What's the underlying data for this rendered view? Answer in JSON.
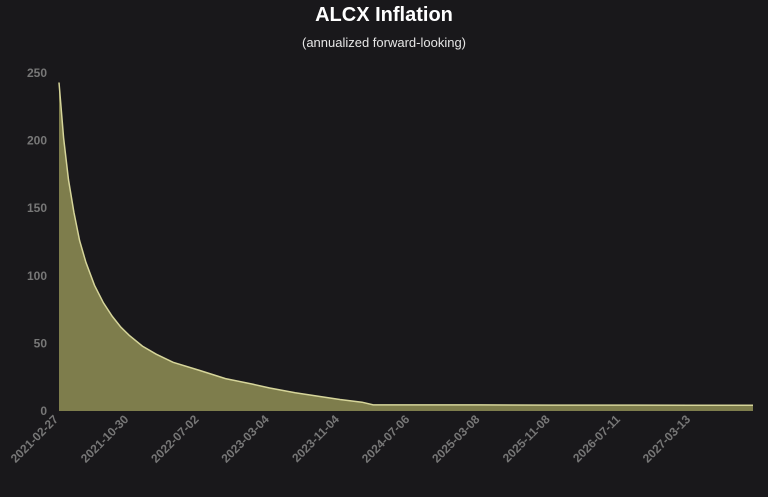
{
  "chart_data": {
    "type": "area",
    "title": "ALCX Inflation",
    "subtitle": "(annualized forward-looking)",
    "xlabel": "",
    "ylabel": "",
    "ylim": [
      0,
      250
    ],
    "yticks": [
      0,
      50,
      100,
      150,
      200,
      250
    ],
    "xticks": [
      "2021-02-27",
      "2021-10-30",
      "2022-07-02",
      "2023-03-04",
      "2023-11-04",
      "2024-07-06",
      "2025-03-08",
      "2025-11-08",
      "2026-07-11",
      "2027-03-13"
    ],
    "xlim": [
      "2021-02-27",
      "2027-10-15"
    ],
    "grid": false,
    "fill_color": "#7e7d4c",
    "line_color": "#d6d59a",
    "series": [
      {
        "x": [
          "2021-02-27",
          "2021-03-15",
          "2021-04-01",
          "2021-04-20",
          "2021-05-10",
          "2021-06-01",
          "2021-07-01",
          "2021-08-01",
          "2021-09-01",
          "2021-10-01",
          "2021-10-30",
          "2021-12-15",
          "2022-02-01",
          "2022-04-01",
          "2022-07-02",
          "2022-10-01",
          "2023-01-01",
          "2023-03-04",
          "2023-06-01",
          "2023-09-01",
          "2023-11-04",
          "2024-01-20",
          "2024-02-28",
          "2024-07-06",
          "2025-03-08",
          "2025-11-08",
          "2026-07-11",
          "2027-03-13",
          "2027-10-15"
        ],
        "values": [
          243,
          202,
          171,
          147,
          126,
          110,
          93,
          80,
          70,
          62,
          56,
          48,
          42,
          36,
          30,
          24,
          20,
          17,
          13.5,
          10.5,
          8.5,
          6.5,
          4.5,
          4.5,
          4.5,
          4.4,
          4.4,
          4.3,
          4.3
        ]
      }
    ]
  }
}
